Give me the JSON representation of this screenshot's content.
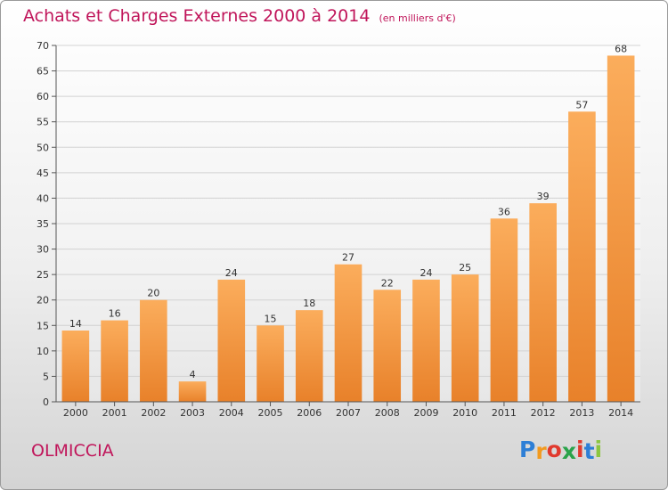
{
  "chart_data": {
    "type": "bar",
    "title": "Achats et Charges Externes 2000 à 2014",
    "subtitle": "(en milliers d'€)",
    "categories": [
      "2000",
      "2001",
      "2002",
      "2003",
      "2004",
      "2005",
      "2006",
      "2007",
      "2008",
      "2009",
      "2010",
      "2011",
      "2012",
      "2013",
      "2014"
    ],
    "values": [
      14,
      16,
      20,
      4,
      24,
      15,
      18,
      27,
      22,
      24,
      25,
      36,
      39,
      57,
      68
    ],
    "ylim": [
      0,
      70
    ],
    "yticks": [
      0,
      5,
      10,
      15,
      20,
      25,
      30,
      35,
      40,
      45,
      50,
      55,
      60,
      65,
      70
    ],
    "grid": true,
    "bar_color": "#e8812a",
    "bar_color_light": "#fbad5c"
  },
  "footer": {
    "place": "OLMICCIA",
    "logo": {
      "letters": [
        "P",
        "r",
        "o",
        "x",
        "i",
        "t",
        "i"
      ],
      "colors": [
        "#2e7fd6",
        "#f29a1f",
        "#e13a2e",
        "#2aa34a",
        "#e13a2e",
        "#2e7fd6",
        "#8cc63f"
      ]
    }
  },
  "colors": {
    "title": "#c0155a"
  }
}
